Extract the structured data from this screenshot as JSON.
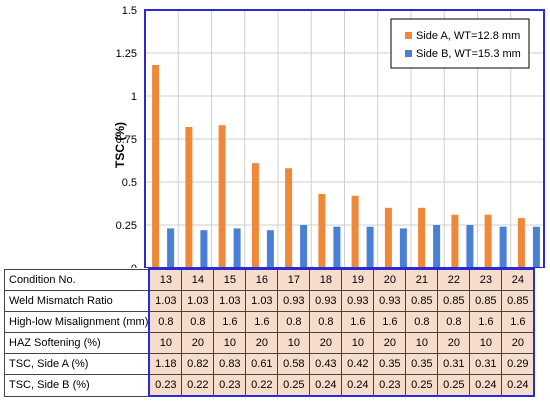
{
  "chart_data": {
    "type": "bar",
    "ylabel": "TSC (%)",
    "ylim": [
      0,
      1.5
    ],
    "yticks": [
      "0",
      "0.25",
      "0.5",
      "0.75",
      "1",
      "1.25",
      "1.5"
    ],
    "grid": true,
    "legend_position": "top-right",
    "categories": [
      "13",
      "14",
      "15",
      "16",
      "17",
      "18",
      "19",
      "20",
      "21",
      "22",
      "23",
      "24"
    ],
    "series": [
      {
        "name": "Side A, WT=12.8 mm",
        "color": "#f0883a",
        "values": [
          1.18,
          0.82,
          0.83,
          0.61,
          0.58,
          0.43,
          0.42,
          0.35,
          0.35,
          0.31,
          0.31,
          0.29
        ]
      },
      {
        "name": "Side B, WT=15.3 mm",
        "color": "#4a7fd6",
        "values": [
          0.23,
          0.22,
          0.23,
          0.22,
          0.25,
          0.24,
          0.24,
          0.23,
          0.25,
          0.25,
          0.24,
          0.24
        ]
      }
    ]
  },
  "table": {
    "rows": [
      {
        "label": "Condition No.",
        "cells": [
          "13",
          "14",
          "15",
          "16",
          "17",
          "18",
          "19",
          "20",
          "21",
          "22",
          "23",
          "24"
        ]
      },
      {
        "label": "Weld Mismatch Ratio",
        "cells": [
          "1.03",
          "1.03",
          "1.03",
          "1.03",
          "0.93",
          "0.93",
          "0.93",
          "0.93",
          "0.85",
          "0.85",
          "0.85",
          "0.85"
        ]
      },
      {
        "label": "High-low Misalignment (mm)",
        "cells": [
          "0.8",
          "0.8",
          "1.6",
          "1.6",
          "0.8",
          "0.8",
          "1.6",
          "1.6",
          "0.8",
          "0.8",
          "1.6",
          "1.6"
        ]
      },
      {
        "label": "HAZ Softening (%)",
        "cells": [
          "10",
          "20",
          "10",
          "20",
          "10",
          "20",
          "10",
          "20",
          "10",
          "20",
          "10",
          "20"
        ]
      },
      {
        "label": "TSC, Side A (%)",
        "cells": [
          "1.18",
          "0.82",
          "0.83",
          "0.61",
          "0.58",
          "0.43",
          "0.42",
          "0.35",
          "0.35",
          "0.31",
          "0.31",
          "0.29"
        ]
      },
      {
        "label": "TSC, Side B (%)",
        "cells": [
          "0.23",
          "0.22",
          "0.23",
          "0.22",
          "0.25",
          "0.24",
          "0.24",
          "0.23",
          "0.25",
          "0.25",
          "0.24",
          "0.24"
        ]
      }
    ]
  }
}
